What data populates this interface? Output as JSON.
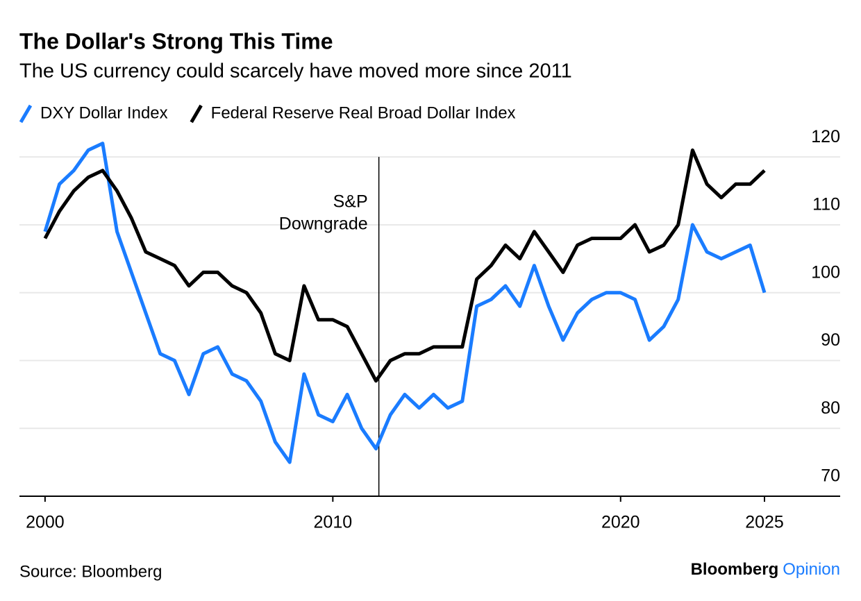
{
  "chart_data": {
    "type": "line",
    "title": "The Dollar's Strong This Time",
    "subtitle": "The US currency could scarcely have moved more since 2011",
    "x": [
      2000,
      2000.5,
      2001,
      2001.5,
      2002,
      2002.5,
      2003,
      2003.5,
      2004,
      2004.5,
      2005,
      2005.5,
      2006,
      2006.5,
      2007,
      2007.5,
      2008,
      2008.5,
      2009,
      2009.5,
      2010,
      2010.5,
      2011,
      2011.5,
      2012,
      2012.5,
      2013,
      2013.5,
      2014,
      2014.5,
      2015,
      2015.5,
      2016,
      2016.5,
      2017,
      2017.5,
      2018,
      2018.5,
      2019,
      2019.5,
      2020,
      2020.5,
      2021,
      2021.5,
      2022,
      2022.5,
      2023,
      2023.5,
      2024,
      2024.5,
      2025
    ],
    "series": [
      {
        "name": "DXY Dollar Index",
        "color": "#1a7cff",
        "values": [
          109,
          116,
          118,
          121,
          122,
          109,
          103,
          97,
          91,
          90,
          85,
          91,
          92,
          88,
          87,
          84,
          78,
          75,
          88,
          82,
          81,
          85,
          80,
          77,
          82,
          85,
          83,
          85,
          83,
          84,
          98,
          99,
          101,
          98,
          104,
          98,
          93,
          97,
          99,
          100,
          100,
          99,
          93,
          95,
          99,
          110,
          106,
          105,
          106,
          107,
          100
        ]
      },
      {
        "name": "Federal Reserve Real Broad Dollar Index",
        "color": "#000000",
        "values": [
          108,
          112,
          115,
          117,
          118,
          115,
          111,
          106,
          105,
          104,
          101,
          103,
          103,
          101,
          100,
          97,
          91,
          90,
          101,
          96,
          96,
          95,
          91,
          87,
          90,
          91,
          91,
          92,
          92,
          92,
          102,
          104,
          107,
          105,
          109,
          106,
          103,
          107,
          108,
          108,
          108,
          110,
          106,
          107,
          110,
          121,
          116,
          114,
          116,
          116,
          118
        ]
      }
    ],
    "xlim": [
      1999.11,
      2027.63
    ],
    "xticks": [
      2000,
      2010,
      2020,
      2025
    ],
    "ylim": [
      70,
      123.7
    ],
    "yticks": [
      70,
      80,
      90,
      100,
      110,
      120
    ],
    "grid": true,
    "annotations": [
      {
        "text": [
          "S&P",
          "Downgrade"
        ],
        "x": 2011.6
      }
    ],
    "source": "Source: Bloomberg",
    "brand": [
      "Bloomberg",
      "Opinion"
    ]
  }
}
